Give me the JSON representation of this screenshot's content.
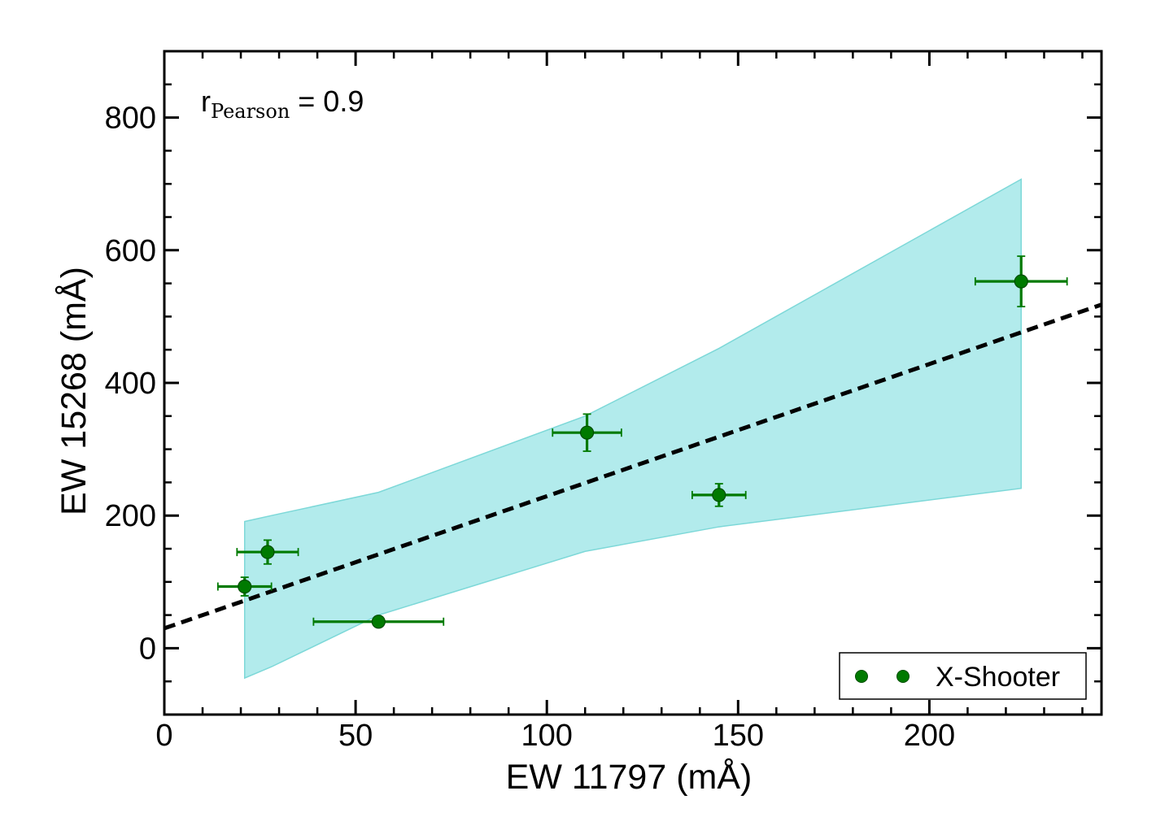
{
  "chart_data": {
    "type": "scatter",
    "xlabel": "EW 11797 (mÅ)",
    "ylabel": "EW 15268 (mÅ)",
    "xlim": [
      0,
      245
    ],
    "ylim": [
      -100,
      900
    ],
    "xticks": [
      0,
      50,
      100,
      150,
      200
    ],
    "xtick_labels": [
      "0",
      "50",
      "100",
      "150",
      "200"
    ],
    "yticks": [
      0,
      200,
      400,
      600,
      800
    ],
    "ytick_labels": [
      "0",
      "200",
      "400",
      "600",
      "800"
    ],
    "grid": false,
    "annotation": {
      "text": "r",
      "subscript": "Pearson",
      "suffix": " = 0.9"
    },
    "series": [
      {
        "name": "X-Shooter",
        "color": "#007a00",
        "points": [
          {
            "x": 21,
            "y": 93,
            "xerr": 7,
            "yerr": 14
          },
          {
            "x": 27,
            "y": 145,
            "xerr": 8,
            "yerr": 18
          },
          {
            "x": 56,
            "y": 40,
            "xerr": 17,
            "yerr": 0
          },
          {
            "x": 110.5,
            "y": 325,
            "xerr": 9,
            "yerr": 28
          },
          {
            "x": 145,
            "y": 231,
            "xerr": 7,
            "yerr": 17
          },
          {
            "x": 224,
            "y": 553,
            "xerr": 12,
            "yerr": 38
          }
        ]
      }
    ],
    "fit_line": {
      "style": "dashed",
      "color": "#000000",
      "x": [
        0,
        245
      ],
      "y": [
        30,
        518
      ]
    },
    "confidence_band": {
      "color": "#b2ebec",
      "edge_color": "#7dd8d8",
      "upper": [
        [
          21,
          191
        ],
        [
          28,
          200
        ],
        [
          56,
          235
        ],
        [
          110,
          350
        ],
        [
          145,
          452
        ],
        [
          224,
          707
        ]
      ],
      "lower": [
        [
          21,
          -45
        ],
        [
          28,
          -28
        ],
        [
          56,
          50
        ],
        [
          110,
          146
        ],
        [
          145,
          183
        ],
        [
          224,
          241
        ]
      ]
    },
    "legend": {
      "position": "bottom-right",
      "entries": [
        "X-Shooter"
      ]
    }
  }
}
